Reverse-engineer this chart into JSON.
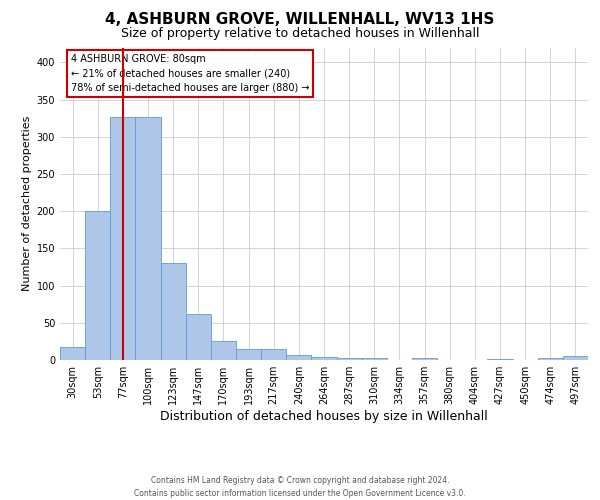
{
  "title": "4, ASHBURN GROVE, WILLENHALL, WV13 1HS",
  "subtitle": "Size of property relative to detached houses in Willenhall",
  "xlabel": "Distribution of detached houses by size in Willenhall",
  "ylabel": "Number of detached properties",
  "categories": [
    "30sqm",
    "53sqm",
    "77sqm",
    "100sqm",
    "123sqm",
    "147sqm",
    "170sqm",
    "193sqm",
    "217sqm",
    "240sqm",
    "264sqm",
    "287sqm",
    "310sqm",
    "334sqm",
    "357sqm",
    "380sqm",
    "404sqm",
    "427sqm",
    "450sqm",
    "474sqm",
    "497sqm"
  ],
  "values": [
    18,
    200,
    327,
    327,
    130,
    62,
    26,
    15,
    15,
    7,
    4,
    3,
    3,
    0,
    3,
    0,
    0,
    2,
    0,
    3,
    5
  ],
  "bar_color": "#aec6e8",
  "bar_edge_color": "#5a9fd4",
  "marker_index": 2,
  "marker_color": "#cc0000",
  "ylim": [
    0,
    420
  ],
  "yticks": [
    0,
    50,
    100,
    150,
    200,
    250,
    300,
    350,
    400
  ],
  "annotation_text": "4 ASHBURN GROVE: 80sqm\n← 21% of detached houses are smaller (240)\n78% of semi-detached houses are larger (880) →",
  "annotation_box_color": "#ffffff",
  "annotation_box_edge": "#cc0000",
  "footer_line1": "Contains HM Land Registry data © Crown copyright and database right 2024.",
  "footer_line2": "Contains public sector information licensed under the Open Government Licence v3.0.",
  "background_color": "#ffffff",
  "grid_color": "#cccccc",
  "title_fontsize": 11,
  "subtitle_fontsize": 9,
  "ylabel_fontsize": 8,
  "xlabel_fontsize": 9,
  "tick_fontsize": 7,
  "annotation_fontsize": 7,
  "footer_fontsize": 5.5
}
